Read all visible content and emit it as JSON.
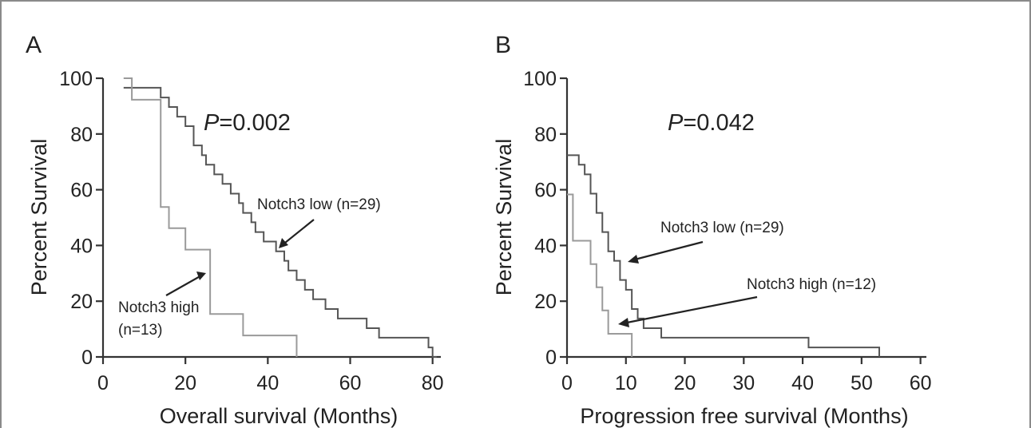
{
  "chart_data": [
    {
      "type": "line",
      "panel_label": "A",
      "xlabel": "Overall survival (Months)",
      "ylabel": "Percent Survival",
      "xlim": [
        0,
        82
      ],
      "ylim": [
        0,
        100
      ],
      "xticks": [
        "0",
        "20",
        "40",
        "60",
        "80"
      ],
      "yticks": [
        "0",
        "20",
        "40",
        "60",
        "80",
        "100"
      ],
      "p_value_label": "P",
      "p_value": "=0.002",
      "series": [
        {
          "name": "Notch3 low (n=29)",
          "color": "#555555",
          "x": [
            5,
            14,
            16,
            18,
            20,
            22,
            24,
            25,
            27,
            29,
            31,
            33,
            34,
            36,
            37,
            39,
            42,
            44,
            45,
            47,
            49,
            51,
            54,
            57,
            62,
            64,
            67,
            69,
            72,
            79,
            80,
            81
          ],
          "y": [
            96.6,
            93.1,
            89.7,
            86.2,
            82.8,
            75.9,
            72.4,
            69.0,
            65.5,
            62.1,
            58.6,
            55.2,
            51.7,
            48.3,
            44.8,
            41.4,
            37.9,
            34.5,
            31.0,
            27.6,
            24.1,
            20.7,
            17.2,
            13.8,
            13.8,
            10.3,
            6.9,
            6.9,
            6.9,
            3.4,
            0,
            0
          ]
        },
        {
          "name": "Notch3 high (n=13)",
          "color": "#9a9a9a",
          "x": [
            5,
            7,
            12,
            14,
            16,
            19,
            20,
            24,
            26,
            29,
            34,
            38,
            47
          ],
          "y": [
            100,
            92.3,
            92.3,
            53.8,
            46.2,
            46.2,
            38.5,
            38.5,
            15.4,
            15.4,
            7.7,
            7.7,
            0
          ]
        }
      ],
      "annotations": [
        "Notch3 low (n=29)",
        "Notch3 high",
        "(n=13)"
      ]
    },
    {
      "type": "line",
      "panel_label": "B",
      "xlabel": "Progression free survival (Months)",
      "ylabel": "Percent Survival",
      "xlim": [
        0,
        61
      ],
      "ylim": [
        0,
        100
      ],
      "xticks": [
        "0",
        "10",
        "20",
        "30",
        "40",
        "50",
        "60"
      ],
      "yticks": [
        "0",
        "20",
        "40",
        "60",
        "80",
        "100"
      ],
      "p_value_label": "P",
      "p_value": "=0.042",
      "series": [
        {
          "name": "Notch3 low (n=29)",
          "color": "#555555",
          "x": [
            0,
            2,
            3,
            4,
            5,
            6,
            7,
            8,
            9,
            10,
            11,
            12,
            13,
            16,
            41,
            53
          ],
          "y": [
            72.4,
            69.0,
            65.5,
            58.6,
            51.7,
            44.8,
            37.9,
            34.5,
            27.6,
            24.1,
            17.2,
            13.8,
            10.3,
            6.9,
            3.4,
            0
          ]
        },
        {
          "name": "Notch3 high (n=12)",
          "color": "#9a9a9a",
          "x": [
            0,
            1,
            2,
            4,
            5,
            6,
            7,
            9,
            11
          ],
          "y": [
            58.3,
            41.7,
            41.7,
            33.3,
            25.0,
            16.7,
            8.3,
            8.3,
            0
          ]
        }
      ],
      "annotations": [
        "Notch3 low (n=29)",
        "Notch3 high (n=12)"
      ]
    }
  ]
}
